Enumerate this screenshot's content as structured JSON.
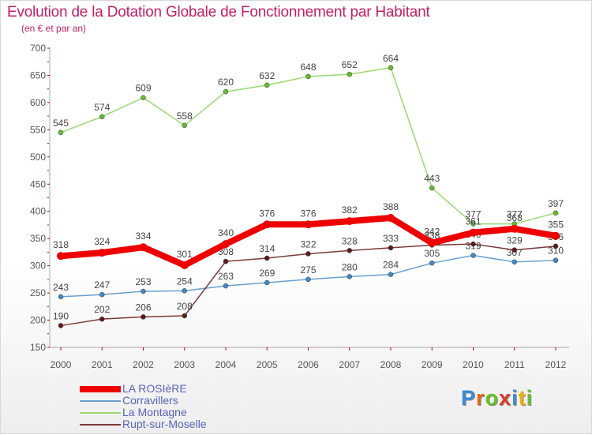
{
  "title": "Evolution de la Dotation Globale de Fonctionnement par Habitant",
  "subtitle": "(en € et par an)",
  "logo": "Proxiti",
  "chart_data": {
    "type": "line",
    "title": "Evolution de la Dotation Globale de Fonctionnement par Habitant",
    "subtitle": "(en € et par an)",
    "x": [
      "2000",
      "2001",
      "2002",
      "2003",
      "2004",
      "2005",
      "2006",
      "2007",
      "2008",
      "2009",
      "2010",
      "2011",
      "2012"
    ],
    "ylim": [
      150,
      700
    ],
    "yticks": [
      150,
      200,
      250,
      300,
      350,
      400,
      450,
      500,
      550,
      600,
      650,
      700
    ],
    "grid": false,
    "legend": "bottom-left",
    "series": [
      {
        "name": "La Montagne",
        "color": "#99d96f",
        "point": "#66bb33",
        "width": 1.5,
        "values": [
          545,
          574,
          609,
          558,
          620,
          632,
          648,
          652,
          664,
          443,
          377,
          377,
          397
        ]
      },
      {
        "name": "Corravillers",
        "color": "#6aa0cc",
        "point": "#4488c4",
        "width": 1.5,
        "values": [
          243,
          247,
          253,
          254,
          263,
          269,
          275,
          280,
          284,
          305,
          319,
          307,
          310
        ]
      },
      {
        "name": "Rupt-sur-Moselle",
        "color": "#7a3a3a",
        "point": "#5c1a1a",
        "width": 1.5,
        "values": [
          190,
          202,
          206,
          208,
          308,
          314,
          322,
          328,
          333,
          338,
          340,
          329,
          336
        ]
      },
      {
        "name": "LA ROSIèRE",
        "color": "#ee0000",
        "point": "#ee0000",
        "width": 8,
        "values": [
          318,
          324,
          334,
          301,
          340,
          376,
          376,
          382,
          388,
          342,
          361,
          368,
          355
        ]
      }
    ],
    "legend_order": [
      "LA ROSIèRE",
      "Corravillers",
      "La Montagne",
      "Rupt-sur-Moselle"
    ]
  }
}
